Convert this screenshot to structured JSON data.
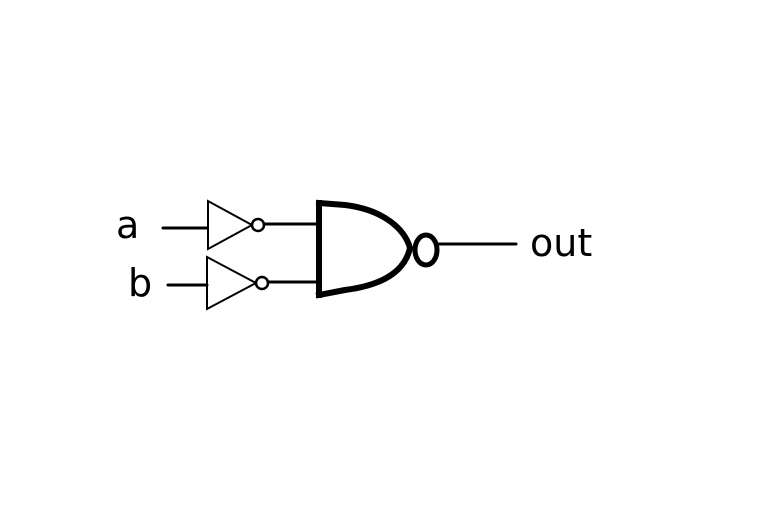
{
  "diagram": {
    "inputs": [
      {
        "label": "a"
      },
      {
        "label": "b"
      }
    ],
    "output": {
      "label": "out"
    },
    "gates": [
      {
        "type": "NOT",
        "input": "a"
      },
      {
        "type": "NOT",
        "input": "b"
      },
      {
        "type": "NAND",
        "inputs": [
          "NOT a",
          "NOT b"
        ],
        "output": "out"
      }
    ],
    "colors": {
      "stroke": "#000000",
      "background": "#ffffff"
    }
  }
}
